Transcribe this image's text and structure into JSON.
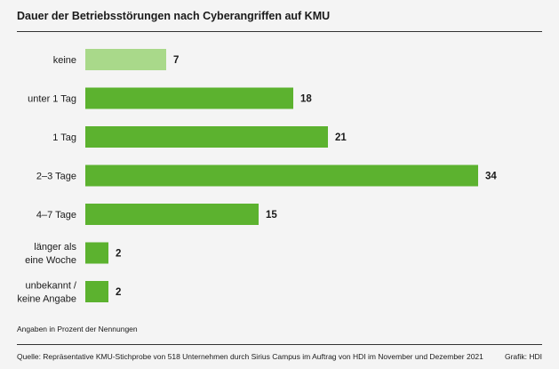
{
  "chart_data": {
    "type": "bar",
    "orientation": "horizontal",
    "title": "Dauer der Betriebsstörungen nach Cyberangriffen auf KMU",
    "categories": [
      [
        "keine"
      ],
      [
        "unter 1 Tag"
      ],
      [
        "1 Tag"
      ],
      [
        "2–3 Tage"
      ],
      [
        "4–7 Tage"
      ],
      [
        "länger als",
        "eine Woche"
      ],
      [
        "unbekannt /",
        "keine Angabe"
      ]
    ],
    "values": [
      7,
      18,
      21,
      34,
      15,
      2,
      2
    ],
    "unit": "Prozent der Nennungen",
    "xlim": [
      0,
      34
    ],
    "colors": {
      "highlight": "#a9d98a",
      "bar": "#5cb22f"
    },
    "highlight_index": 0
  },
  "note": "Angaben in Prozent der Nennungen",
  "source": "Quelle: Repräsentative KMU-Stichprobe von 518 Unternehmen durch Sirius Campus im Auftrag von HDI im November und Dezember 2021",
  "credit": "Grafik: HDI"
}
